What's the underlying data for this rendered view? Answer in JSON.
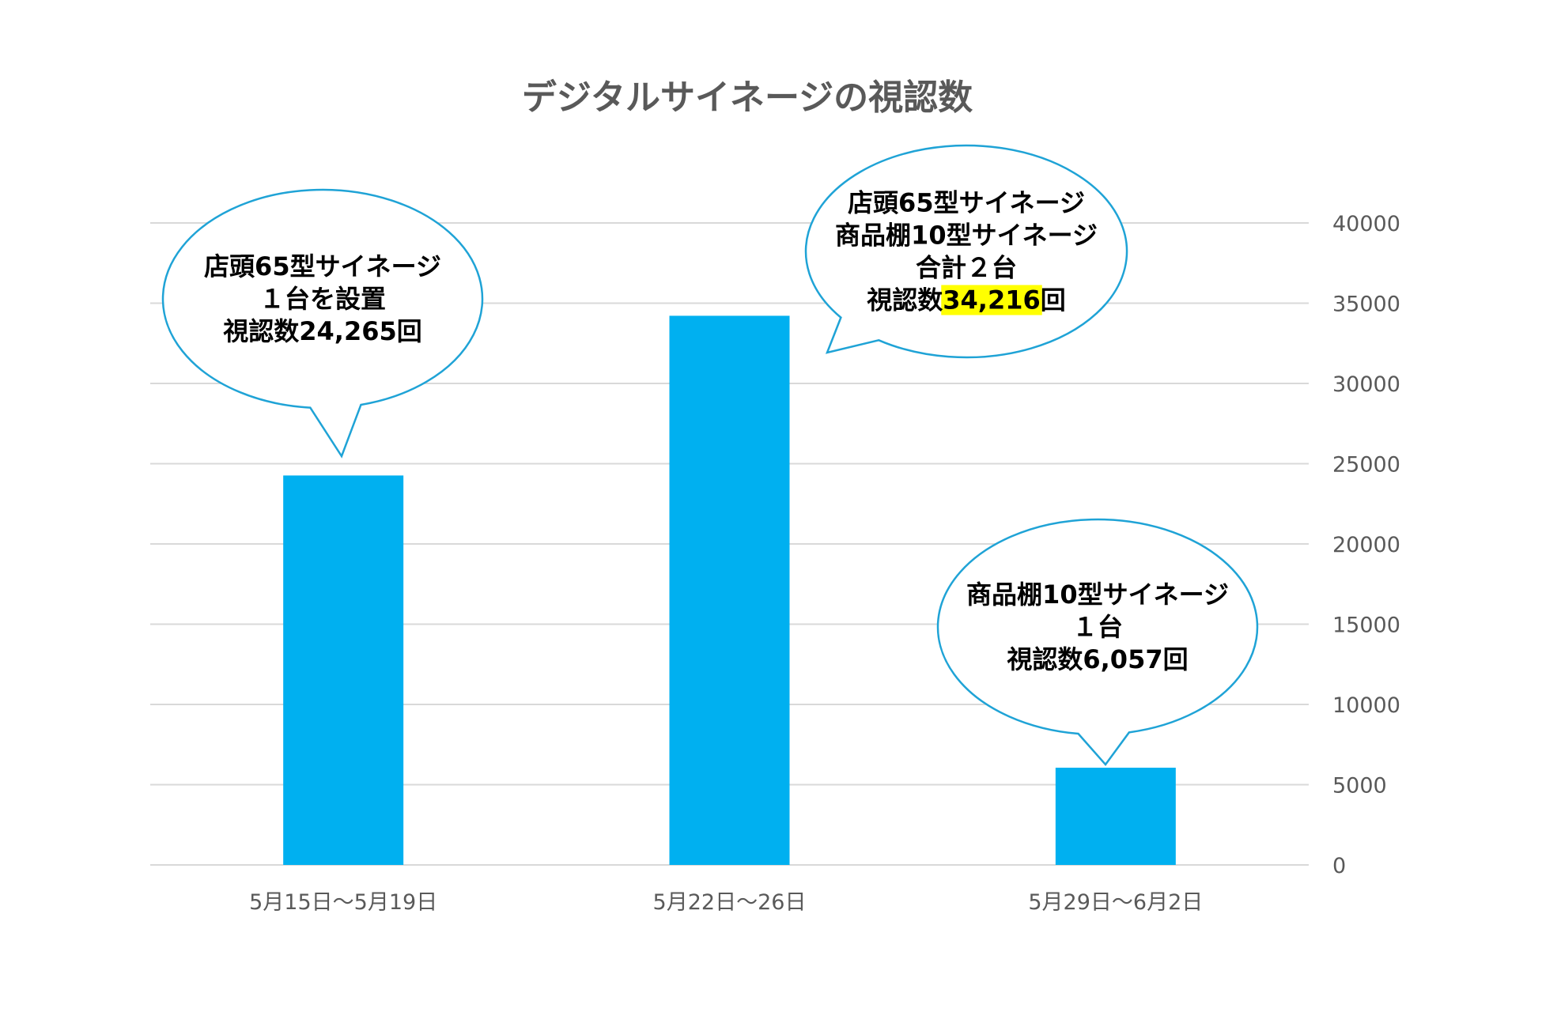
{
  "colors": {
    "bar": "#00B0F0",
    "grid": "#D9D9D9",
    "text": "#595959",
    "callout_stroke": "#1FA3D6",
    "highlight": "#FFFF00"
  },
  "chart_data": {
    "type": "bar",
    "title": "デジタルサイネージの視認数",
    "categories": [
      "5月15日〜5月19日",
      "5月22日〜26日",
      "5月29日〜6月2日"
    ],
    "values": [
      24265,
      34216,
      6057
    ],
    "ylim": [
      0,
      40000
    ],
    "yticks": [
      0,
      5000,
      10000,
      15000,
      20000,
      25000,
      30000,
      35000,
      40000
    ],
    "ytick_labels": [
      "0",
      "5000",
      "10000",
      "15000",
      "20000",
      "25000",
      "30000",
      "35000",
      "40000"
    ],
    "y_axis_side": "right",
    "grid": true,
    "legend": "none",
    "annotations": [
      {
        "bar": 0,
        "lines": [
          {
            "text": "店頭65型サイネージ"
          },
          {
            "text": "１台を設置"
          },
          {
            "text": "視認数24,265回"
          }
        ]
      },
      {
        "bar": 1,
        "lines": [
          {
            "text": "店頭65型サイネージ"
          },
          {
            "text": "商品棚10型サイネージ"
          },
          {
            "text": "合計２台"
          },
          {
            "prefix": "視認数",
            "highlight": "34,216",
            "suffix": "回"
          }
        ]
      },
      {
        "bar": 2,
        "lines": [
          {
            "text": "商品棚10型サイネージ"
          },
          {
            "text": "１台"
          },
          {
            "text": "視認数6,057回"
          }
        ]
      }
    ]
  }
}
